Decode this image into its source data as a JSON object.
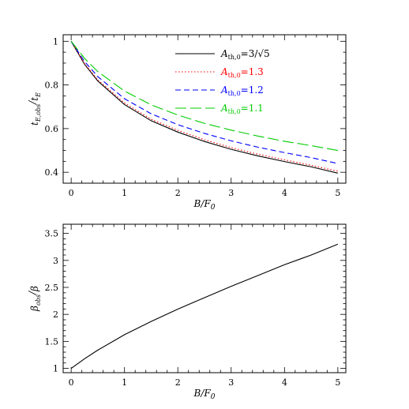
{
  "chart_data": [
    {
      "type": "line",
      "xlabel": "B/F",
      "xlabel_sub": "0",
      "ylabel": "t",
      "ylabel_sub": "E,obs",
      "ylabel_den": "t",
      "ylabel_den_sub": "E",
      "xlim": [
        -0.15,
        5.15
      ],
      "ylim": [
        0.35,
        1.03
      ],
      "xticks": [
        0,
        1,
        2,
        3,
        4,
        5
      ],
      "yticks": [
        0.4,
        0.6,
        0.8,
        1
      ],
      "ytick_labels": [
        "0.4",
        "0.6",
        "0.8",
        "1"
      ],
      "legend_position": "top-right",
      "x": [
        0,
        0.25,
        0.5,
        1,
        1.5,
        2,
        2.5,
        3,
        3.5,
        4,
        4.5,
        5
      ],
      "series": [
        {
          "name": "A",
          "name_sub": "th,0",
          "name_rest": "=3/√5",
          "color": "#000000",
          "dash": "solid",
          "values": [
            1.0,
            0.895,
            0.818,
            0.71,
            0.636,
            0.584,
            0.541,
            0.505,
            0.475,
            0.449,
            0.425,
            0.396
          ]
        },
        {
          "name": "A",
          "name_sub": "th,0",
          "name_rest": "=1.3",
          "color": "#ff0000",
          "dash": "dotted",
          "values": [
            1.0,
            0.898,
            0.823,
            0.717,
            0.643,
            0.592,
            0.549,
            0.513,
            0.483,
            0.457,
            0.432,
            0.405
          ]
        },
        {
          "name": "A",
          "name_sub": "th,0",
          "name_rest": "=1.2",
          "color": "#0000ff",
          "dash": "dashed",
          "values": [
            1.0,
            0.908,
            0.838,
            0.737,
            0.668,
            0.618,
            0.578,
            0.544,
            0.515,
            0.49,
            0.467,
            0.44
          ]
        },
        {
          "name": "A",
          "name_sub": "th,0",
          "name_rest": "=1.1",
          "color": "#00cc00",
          "dash": "long-dashed",
          "values": [
            1.0,
            0.922,
            0.861,
            0.772,
            0.709,
            0.662,
            0.624,
            0.593,
            0.566,
            0.542,
            0.522,
            0.5
          ]
        }
      ]
    },
    {
      "type": "line",
      "xlabel": "B/F",
      "xlabel_sub": "0",
      "ylabel": "β",
      "ylabel_sub": "obs",
      "ylabel_den": "β",
      "xlim": [
        -0.15,
        5.15
      ],
      "ylim": [
        0.92,
        3.67
      ],
      "xticks": [
        0,
        1,
        2,
        3,
        4,
        5
      ],
      "yticks": [
        1,
        1.5,
        2,
        2.5,
        3,
        3.5
      ],
      "ytick_labels": [
        "1",
        "1.5",
        "2",
        "2.5",
        "3",
        "3.5"
      ],
      "x": [
        0,
        0.25,
        0.5,
        1,
        1.5,
        2,
        2.5,
        3,
        3.5,
        4,
        4.5,
        5
      ],
      "series": [
        {
          "color": "#000000",
          "dash": "solid",
          "values": [
            1.0,
            1.177,
            1.339,
            1.624,
            1.869,
            2.098,
            2.31,
            2.52,
            2.72,
            2.92,
            3.1,
            3.3
          ]
        }
      ]
    }
  ]
}
